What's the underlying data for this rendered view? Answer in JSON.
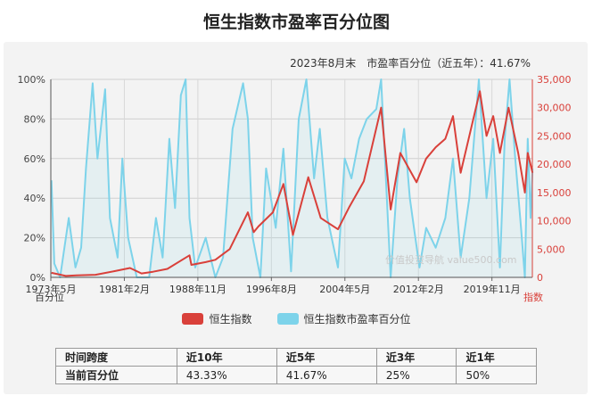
{
  "title": "恒生指数市盈率百分位图",
  "subtitle": "2023年8月末　市盈率百分位（近五年）：41.67%",
  "watermark": "价值投资导航 value500.com",
  "colors": {
    "index": "#d9403a",
    "percentile": "#7dd3ea",
    "right_axis": "#d9403a"
  },
  "chart_data": {
    "type": "line",
    "x_start": "1973-05",
    "x_end": "2023-08",
    "x_ticks": [
      "1973年5月",
      "1981年2月",
      "1988年11月",
      "1996年8月",
      "2004年5月",
      "2012年2月",
      "2019年11月"
    ],
    "y_left": {
      "label": "百分位",
      "min": 0,
      "max": 100,
      "ticks": [
        "0%",
        "20%",
        "40%",
        "60%",
        "80%",
        "100%"
      ]
    },
    "y_right": {
      "label": "指数",
      "min": 0,
      "max": 35000,
      "ticks": [
        "0",
        "5,000",
        "10,000",
        "15,000",
        "20,000",
        "25,000",
        "30,000",
        "35,000"
      ]
    },
    "grid": true,
    "legend_position": "bottom",
    "series": [
      {
        "name": "恒生指数",
        "axis": "right",
        "points": [
          [
            1973.4,
            800
          ],
          [
            1974.9,
            250
          ],
          [
            1976,
            350
          ],
          [
            1978,
            450
          ],
          [
            1980,
            1100
          ],
          [
            1981.6,
            1650
          ],
          [
            1982.8,
            700
          ],
          [
            1984,
            1000
          ],
          [
            1985.5,
            1500
          ],
          [
            1987.8,
            3900
          ],
          [
            1988,
            2200
          ],
          [
            1989.5,
            2700
          ],
          [
            1990.5,
            3100
          ],
          [
            1992,
            5000
          ],
          [
            1993.9,
            11500
          ],
          [
            1994.5,
            8000
          ],
          [
            1995,
            9000
          ],
          [
            1996.5,
            11500
          ],
          [
            1997.6,
            16500
          ],
          [
            1998.6,
            7500
          ],
          [
            2000.2,
            17700
          ],
          [
            2001.5,
            10500
          ],
          [
            2003.3,
            8500
          ],
          [
            2004.5,
            12500
          ],
          [
            2006,
            17000
          ],
          [
            2007.8,
            30000
          ],
          [
            2008.8,
            12000
          ],
          [
            2009.8,
            22000
          ],
          [
            2011.5,
            16800
          ],
          [
            2012.5,
            21000
          ],
          [
            2013.5,
            23000
          ],
          [
            2014.5,
            24500
          ],
          [
            2015.3,
            28500
          ],
          [
            2016.1,
            18500
          ],
          [
            2018.1,
            32900
          ],
          [
            2018.8,
            25000
          ],
          [
            2019.5,
            28500
          ],
          [
            2020.2,
            22000
          ],
          [
            2021.1,
            30000
          ],
          [
            2022.1,
            22000
          ],
          [
            2022.8,
            15000
          ],
          [
            2023.1,
            22000
          ],
          [
            2023.6,
            18500
          ]
        ]
      },
      {
        "name": "恒生指数市盈率百分位",
        "axis": "left",
        "points": [
          [
            1973.4,
            49
          ],
          [
            1973.7,
            7
          ],
          [
            1974.3,
            0
          ],
          [
            1975.2,
            30
          ],
          [
            1975.9,
            5
          ],
          [
            1976.5,
            15
          ],
          [
            1977,
            55
          ],
          [
            1977.7,
            98
          ],
          [
            1978.2,
            60
          ],
          [
            1979,
            95
          ],
          [
            1979.5,
            30
          ],
          [
            1980.3,
            10
          ],
          [
            1980.8,
            60
          ],
          [
            1981.4,
            20
          ],
          [
            1982.3,
            0
          ],
          [
            1983.6,
            0
          ],
          [
            1984.3,
            30
          ],
          [
            1985,
            10
          ],
          [
            1985.7,
            70
          ],
          [
            1986.3,
            35
          ],
          [
            1986.9,
            92
          ],
          [
            1987.4,
            100
          ],
          [
            1987.8,
            30
          ],
          [
            1988.4,
            5
          ],
          [
            1989.5,
            20
          ],
          [
            1990.5,
            0
          ],
          [
            1991.3,
            10
          ],
          [
            1992.3,
            75
          ],
          [
            1993.4,
            98
          ],
          [
            1993.9,
            80
          ],
          [
            1994.4,
            20
          ],
          [
            1995.2,
            0
          ],
          [
            1995.8,
            55
          ],
          [
            1996.8,
            25
          ],
          [
            1997.6,
            65
          ],
          [
            1998.4,
            3
          ],
          [
            1999.2,
            80
          ],
          [
            2000,
            100
          ],
          [
            2000.8,
            50
          ],
          [
            2001.4,
            75
          ],
          [
            2002.2,
            30
          ],
          [
            2003.3,
            5
          ],
          [
            2004,
            60
          ],
          [
            2004.7,
            50
          ],
          [
            2005.5,
            70
          ],
          [
            2006.3,
            80
          ],
          [
            2007.3,
            85
          ],
          [
            2007.8,
            100
          ],
          [
            2008.8,
            0
          ],
          [
            2009.5,
            50
          ],
          [
            2010.2,
            75
          ],
          [
            2010.8,
            40
          ],
          [
            2011.8,
            5
          ],
          [
            2012.5,
            25
          ],
          [
            2013.5,
            15
          ],
          [
            2014.5,
            30
          ],
          [
            2015.3,
            60
          ],
          [
            2016.1,
            10
          ],
          [
            2017,
            40
          ],
          [
            2018,
            100
          ],
          [
            2018.8,
            40
          ],
          [
            2019.5,
            70
          ],
          [
            2020.2,
            5
          ],
          [
            2020.7,
            70
          ],
          [
            2021.2,
            100
          ],
          [
            2021.8,
            60
          ],
          [
            2022.4,
            25
          ],
          [
            2022.8,
            0
          ],
          [
            2023.1,
            70
          ],
          [
            2023.4,
            30
          ],
          [
            2023.6,
            55
          ]
        ]
      }
    ]
  },
  "table": {
    "row_header_label": "时间跨度",
    "value_row_label": "当前百分位",
    "columns": [
      "近10年",
      "近5年",
      "近3年",
      "近1年"
    ],
    "values": [
      "43.33%",
      "41.67%",
      "25%",
      "50%"
    ]
  }
}
